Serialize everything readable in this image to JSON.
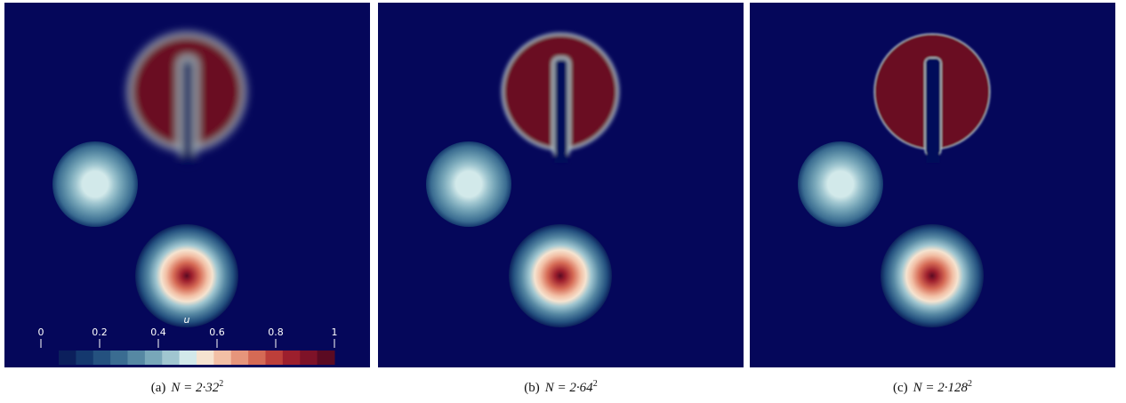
{
  "colorbar": {
    "title": "u",
    "ticks": [
      0,
      0.2,
      0.4,
      0.6,
      0.8,
      1
    ],
    "colors": [
      "#0b1f5c",
      "#14386e",
      "#24517f",
      "#3a6c91",
      "#5688a3",
      "#78a7b9",
      "#a0c6d0",
      "#d2e9ea",
      "#f5e3d0",
      "#f2bfa5",
      "#e6957b",
      "#d56a55",
      "#bd3f3a",
      "#9d1f2d",
      "#7e1228",
      "#5b0a22"
    ]
  },
  "panels": [
    {
      "label": "(a)",
      "text": "N = 2·32",
      "sup": "2"
    },
    {
      "label": "(b)",
      "text": "N = 2·64",
      "sup": "2"
    },
    {
      "label": "(c)",
      "text": "N = 2·128",
      "sup": "2"
    }
  ]
}
